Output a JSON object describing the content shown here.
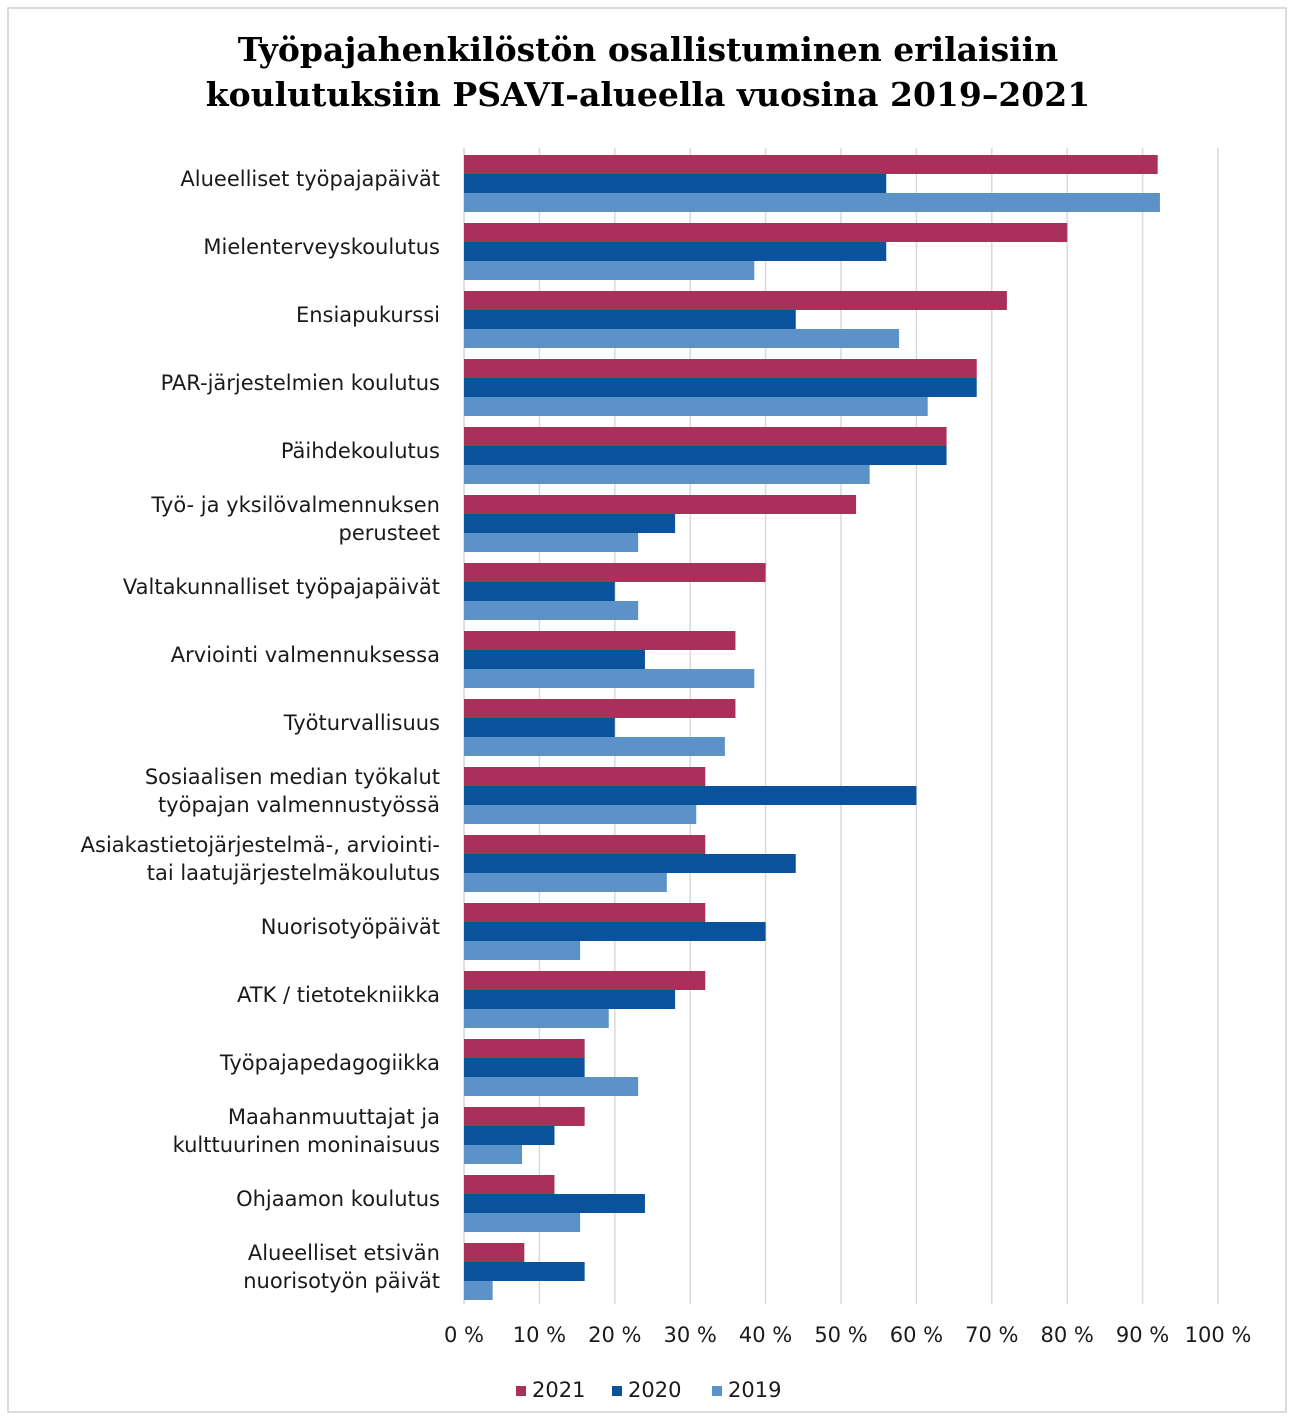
{
  "chart_data": {
    "type": "bar",
    "orientation": "horizontal",
    "title": "Työpajahenkilöstön osallistuminen erilaisiin\nkoulutuksiin PSAVI-alueella vuosina 2019–2021",
    "categories": [
      "Alueelliset työpajapäivät",
      "Mielenterveyskoulutus",
      "Ensiapukurssi",
      "PAR-järjestelmien koulutus",
      "Päihdekoulutus",
      "Työ- ja yksilövalmennuksen\nperusteet",
      "Valtakunnalliset työpajapäivät",
      "Arviointi valmennuksessa",
      "Työturvallisuus",
      "Sosiaalisen median työkalut\ntyöpajan valmennustyössä",
      "Asiakastietojärjestelmä-, arviointi-\ntai laatujärjestelmäkoulutus",
      "Nuorisotyöpäivät",
      "ATK / tietotekniikka",
      "Työpajapedagogiikka",
      "Maahanmuuttajat ja\nkulttuurinen moninaisuus",
      "Ohjaamon koulutus",
      "Alueelliset etsivän\nnuorisotyön päivät"
    ],
    "series": [
      {
        "name": "2021",
        "color": "#a8305a",
        "values": [
          92,
          80,
          72,
          68,
          64,
          52,
          40,
          36,
          36,
          32,
          32,
          32,
          32,
          16,
          16,
          12,
          8
        ]
      },
      {
        "name": "2020",
        "color": "#0a529c",
        "values": [
          56,
          56,
          44,
          68,
          64,
          28,
          20,
          24,
          20,
          60,
          44,
          40,
          28,
          16,
          12,
          24,
          16
        ]
      },
      {
        "name": "2019",
        "color": "#5b92c8",
        "values": [
          92.3,
          38.5,
          57.7,
          61.5,
          53.8,
          23.1,
          23.1,
          38.5,
          34.6,
          30.8,
          26.9,
          15.4,
          19.2,
          23.1,
          7.7,
          15.4,
          3.8
        ]
      }
    ],
    "xlim": [
      0,
      100
    ],
    "xticks": [
      {
        "value": 0,
        "label": "0 %"
      },
      {
        "value": 10,
        "label": "10 %"
      },
      {
        "value": 20,
        "label": "20 %"
      },
      {
        "value": 30,
        "label": "30 %"
      },
      {
        "value": 40,
        "label": "40 %"
      },
      {
        "value": 50,
        "label": "50 %"
      },
      {
        "value": 60,
        "label": "60 %"
      },
      {
        "value": 70,
        "label": "70 %"
      },
      {
        "value": 80,
        "label": "80 %"
      },
      {
        "value": 90,
        "label": "90 %"
      },
      {
        "value": 100,
        "label": "100 %"
      }
    ],
    "grid": true,
    "legend": "bottom"
  }
}
